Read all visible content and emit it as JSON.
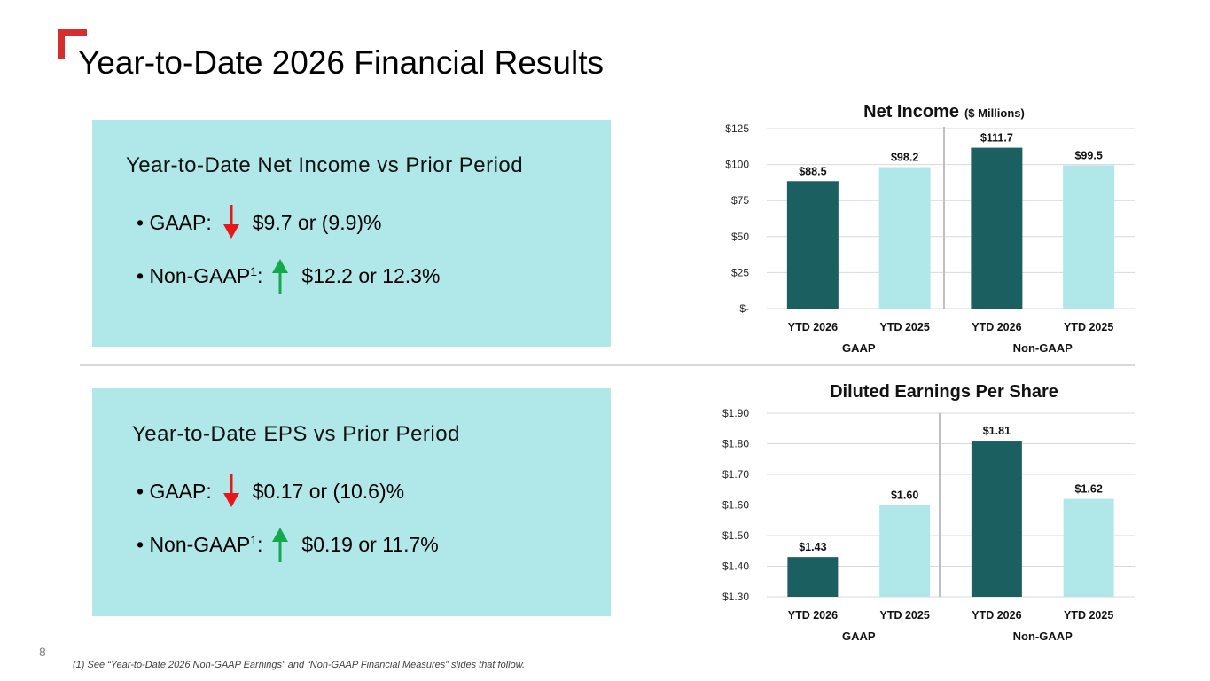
{
  "slide": {
    "title": "Year-to-Date 2026 Financial Results",
    "page_number": "8",
    "footnote": "(1) See “Year-to-Date 2026 Non-GAAP Earnings” and “Non-GAAP Financial Measures” slides that follow.",
    "accent_color": "#d62e2f"
  },
  "panels": {
    "net_income": {
      "heading": "Year-to-Date Net Income vs Prior Period",
      "gaap_label": "• GAAP:",
      "gaap_value": "$9.7 or (9.9)%",
      "gaap_direction": "down",
      "nongaap_label": "• Non-GAAP",
      "nongaap_sup": "1",
      "nongaap_colon": ":",
      "nongaap_value": "$12.2 or 12.3%",
      "nongaap_direction": "up"
    },
    "eps": {
      "heading": "Year-to-Date EPS vs Prior Period",
      "gaap_label": "• GAAP:",
      "gaap_value": "$0.17 or (10.6)%",
      "gaap_direction": "down",
      "nongaap_label": "• Non-GAAP",
      "nongaap_sup": "1",
      "nongaap_colon": ":",
      "nongaap_value": "$0.19 or 11.7%",
      "nongaap_direction": "up"
    },
    "panel_color": "#b0e7e8",
    "down_arrow_color": "#e8151b",
    "up_arrow_color": "#14a84a"
  },
  "chart_data": [
    {
      "type": "bar",
      "title": "Net Income",
      "title_suffix": "($ Millions)",
      "categories": [
        "YTD 2026",
        "YTD 2025",
        "YTD 2026",
        "YTD 2025"
      ],
      "groups": [
        "GAAP",
        "Non-GAAP"
      ],
      "values": [
        88.5,
        98.2,
        111.7,
        99.5
      ],
      "data_labels": [
        "$88.5",
        "$98.2",
        "$111.7",
        "$99.5"
      ],
      "colors": [
        "#1c5f60",
        "#b0e7e8",
        "#1c5f60",
        "#b0e7e8"
      ],
      "ylim": [
        0,
        125
      ],
      "yticks": [
        0,
        25,
        50,
        75,
        100,
        125
      ],
      "ytick_labels": [
        "$-",
        "$25",
        "$50",
        "$75",
        "$100",
        "$125"
      ],
      "grid": true
    },
    {
      "type": "bar",
      "title": "Diluted Earnings Per Share",
      "title_suffix": "",
      "categories": [
        "YTD 2026",
        "YTD 2025",
        "YTD 2026",
        "YTD 2025"
      ],
      "groups": [
        "GAAP",
        "Non-GAAP"
      ],
      "values": [
        1.43,
        1.6,
        1.81,
        1.62
      ],
      "data_labels": [
        "$1.43",
        "$1.60",
        "$1.81",
        "$1.62"
      ],
      "colors": [
        "#1c5f60",
        "#b0e7e8",
        "#1c5f60",
        "#b0e7e8"
      ],
      "ylim": [
        1.3,
        1.9
      ],
      "yticks": [
        1.3,
        1.4,
        1.5,
        1.6,
        1.7,
        1.8,
        1.9
      ],
      "ytick_labels": [
        "$1.30",
        "$1.40",
        "$1.50",
        "$1.60",
        "$1.70",
        "$1.80",
        "$1.90"
      ],
      "grid": true
    }
  ]
}
